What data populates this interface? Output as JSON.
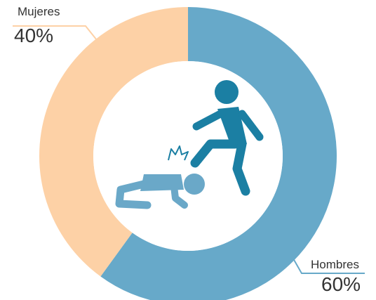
{
  "chart_data": {
    "type": "pie",
    "donut": true,
    "categories": [
      "Hombres",
      "Mujeres"
    ],
    "values": [
      60,
      40
    ],
    "value_labels": [
      "60%",
      "40%"
    ],
    "colors": [
      "#67a9c9",
      "#fdd1a6"
    ]
  }
}
